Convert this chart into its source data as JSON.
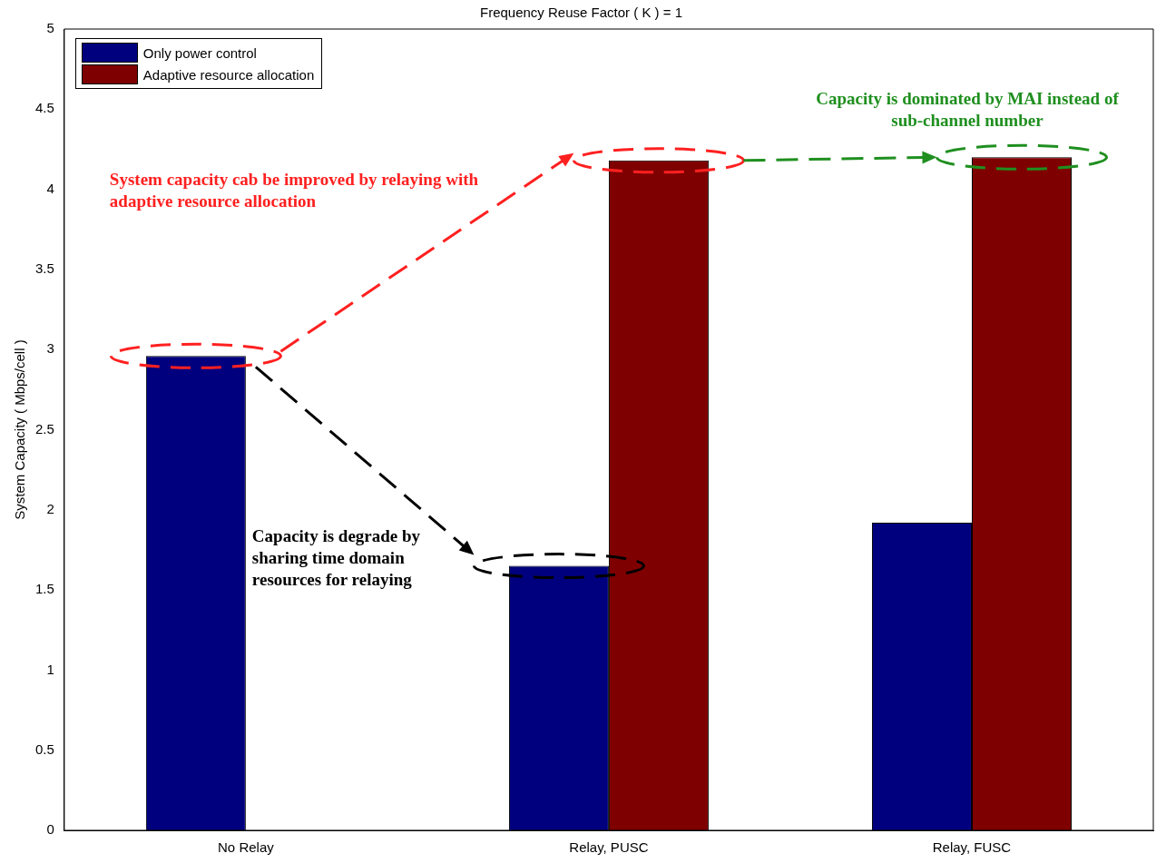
{
  "chart_data": {
    "type": "bar",
    "title": "Frequency Reuse Factor ( K ) = 1",
    "ylabel": "System Capacity ( Mbps/cell )",
    "categories": [
      "No Relay",
      "Relay, PUSC",
      "Relay, FUSC"
    ],
    "series": [
      {
        "name": "Only power control",
        "color": "#00007f",
        "values": [
          2.96,
          1.65,
          1.92
        ]
      },
      {
        "name": "Adaptive resource allocation",
        "color": "#7f0000",
        "values": [
          null,
          4.18,
          4.2
        ]
      }
    ],
    "ylim": [
      0,
      5
    ],
    "yticks": [
      0,
      0.5,
      1,
      1.5,
      2,
      2.5,
      3,
      3.5,
      4,
      4.5,
      5
    ],
    "grid": false,
    "legend": "top left",
    "annotations": [
      "System capacity cab be improved by relaying with adaptive resource allocation",
      "Capacity is dominated by MAI instead of sub-channel number",
      "Capacity is degrade by sharing time domain resources for relaying"
    ]
  }
}
